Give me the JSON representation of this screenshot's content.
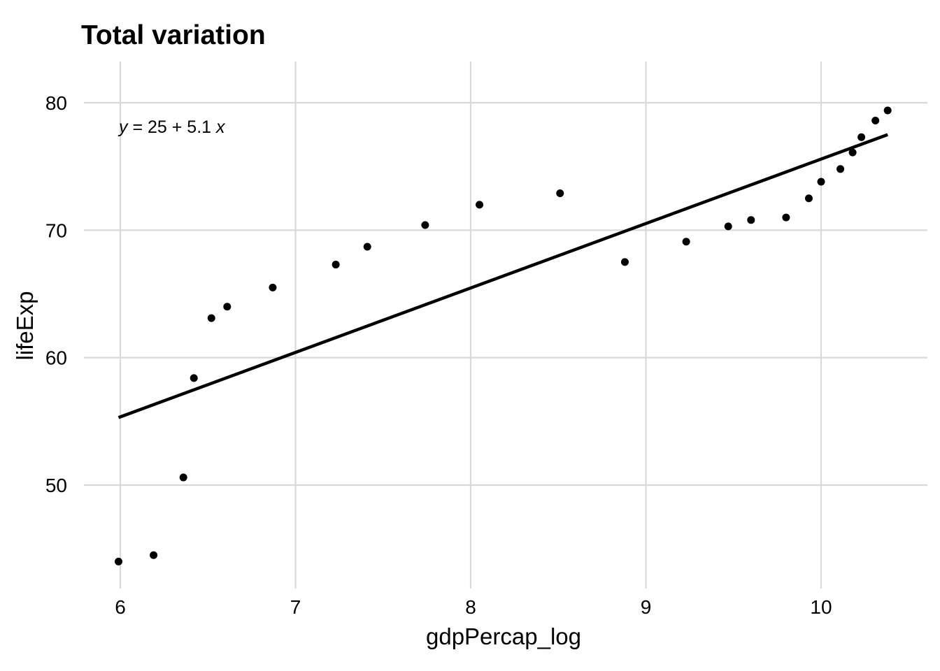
{
  "chart_data": {
    "type": "scatter",
    "title": "Total variation",
    "xlabel": "gdpPercap_log",
    "ylabel": "lifeExp",
    "xlim": [
      5.6,
      10.6
    ],
    "ylim": [
      41.5,
      83.0
    ],
    "x_ticks": [
      6,
      7,
      8,
      9,
      10
    ],
    "y_ticks": [
      50,
      60,
      70,
      80
    ],
    "grid": true,
    "legend": "none",
    "points": [
      {
        "x": 5.99,
        "y": 44.0
      },
      {
        "x": 6.19,
        "y": 44.5
      },
      {
        "x": 6.36,
        "y": 50.6
      },
      {
        "x": 6.42,
        "y": 58.4
      },
      {
        "x": 6.52,
        "y": 63.1
      },
      {
        "x": 6.61,
        "y": 64.0
      },
      {
        "x": 6.87,
        "y": 65.5
      },
      {
        "x": 7.23,
        "y": 67.3
      },
      {
        "x": 7.41,
        "y": 68.7
      },
      {
        "x": 7.74,
        "y": 70.4
      },
      {
        "x": 8.05,
        "y": 72.0
      },
      {
        "x": 8.51,
        "y": 72.9
      },
      {
        "x": 8.88,
        "y": 67.5
      },
      {
        "x": 9.23,
        "y": 69.1
      },
      {
        "x": 9.47,
        "y": 70.3
      },
      {
        "x": 9.6,
        "y": 70.8
      },
      {
        "x": 9.8,
        "y": 71.0
      },
      {
        "x": 9.93,
        "y": 72.5
      },
      {
        "x": 10.0,
        "y": 73.8
      },
      {
        "x": 10.11,
        "y": 74.8
      },
      {
        "x": 10.18,
        "y": 76.1
      },
      {
        "x": 10.23,
        "y": 77.3
      },
      {
        "x": 10.31,
        "y": 78.6
      },
      {
        "x": 10.38,
        "y": 79.4
      }
    ],
    "fit_line": {
      "intercept": 25,
      "slope": 5.1,
      "x_start": 5.99,
      "x_end": 10.38,
      "y_start": 55.3,
      "y_end": 77.5
    },
    "annotation": "y = 25 + 5.1 x"
  }
}
